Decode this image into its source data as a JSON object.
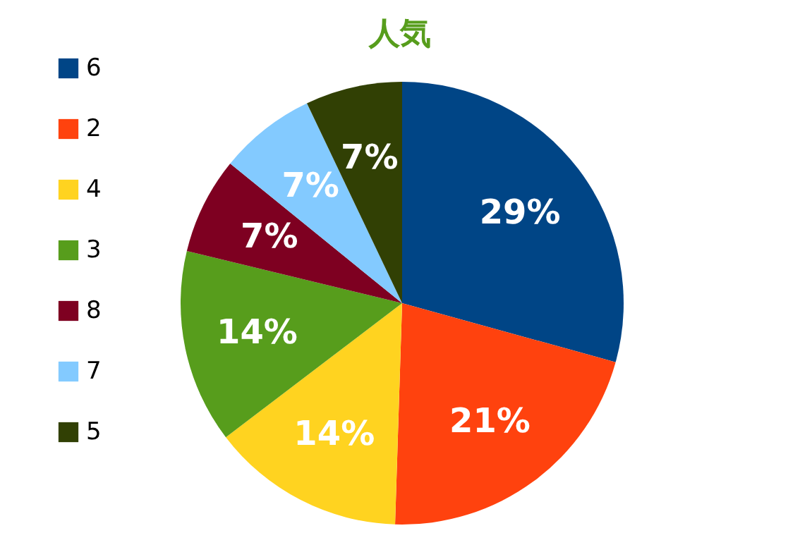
{
  "chart_data": {
    "type": "pie",
    "title": "人気",
    "categories": [
      "6",
      "2",
      "4",
      "3",
      "8",
      "7",
      "5"
    ],
    "values": [
      29,
      21,
      14,
      14,
      7,
      7,
      7
    ],
    "value_labels": [
      "29%",
      "21%",
      "14%",
      "14%",
      "7%",
      "7%",
      "7%"
    ],
    "colors": [
      "#004586",
      "#ff420e",
      "#ffd320",
      "#579d1c",
      "#7e0021",
      "#83caff",
      "#314004"
    ],
    "legend": "left"
  }
}
